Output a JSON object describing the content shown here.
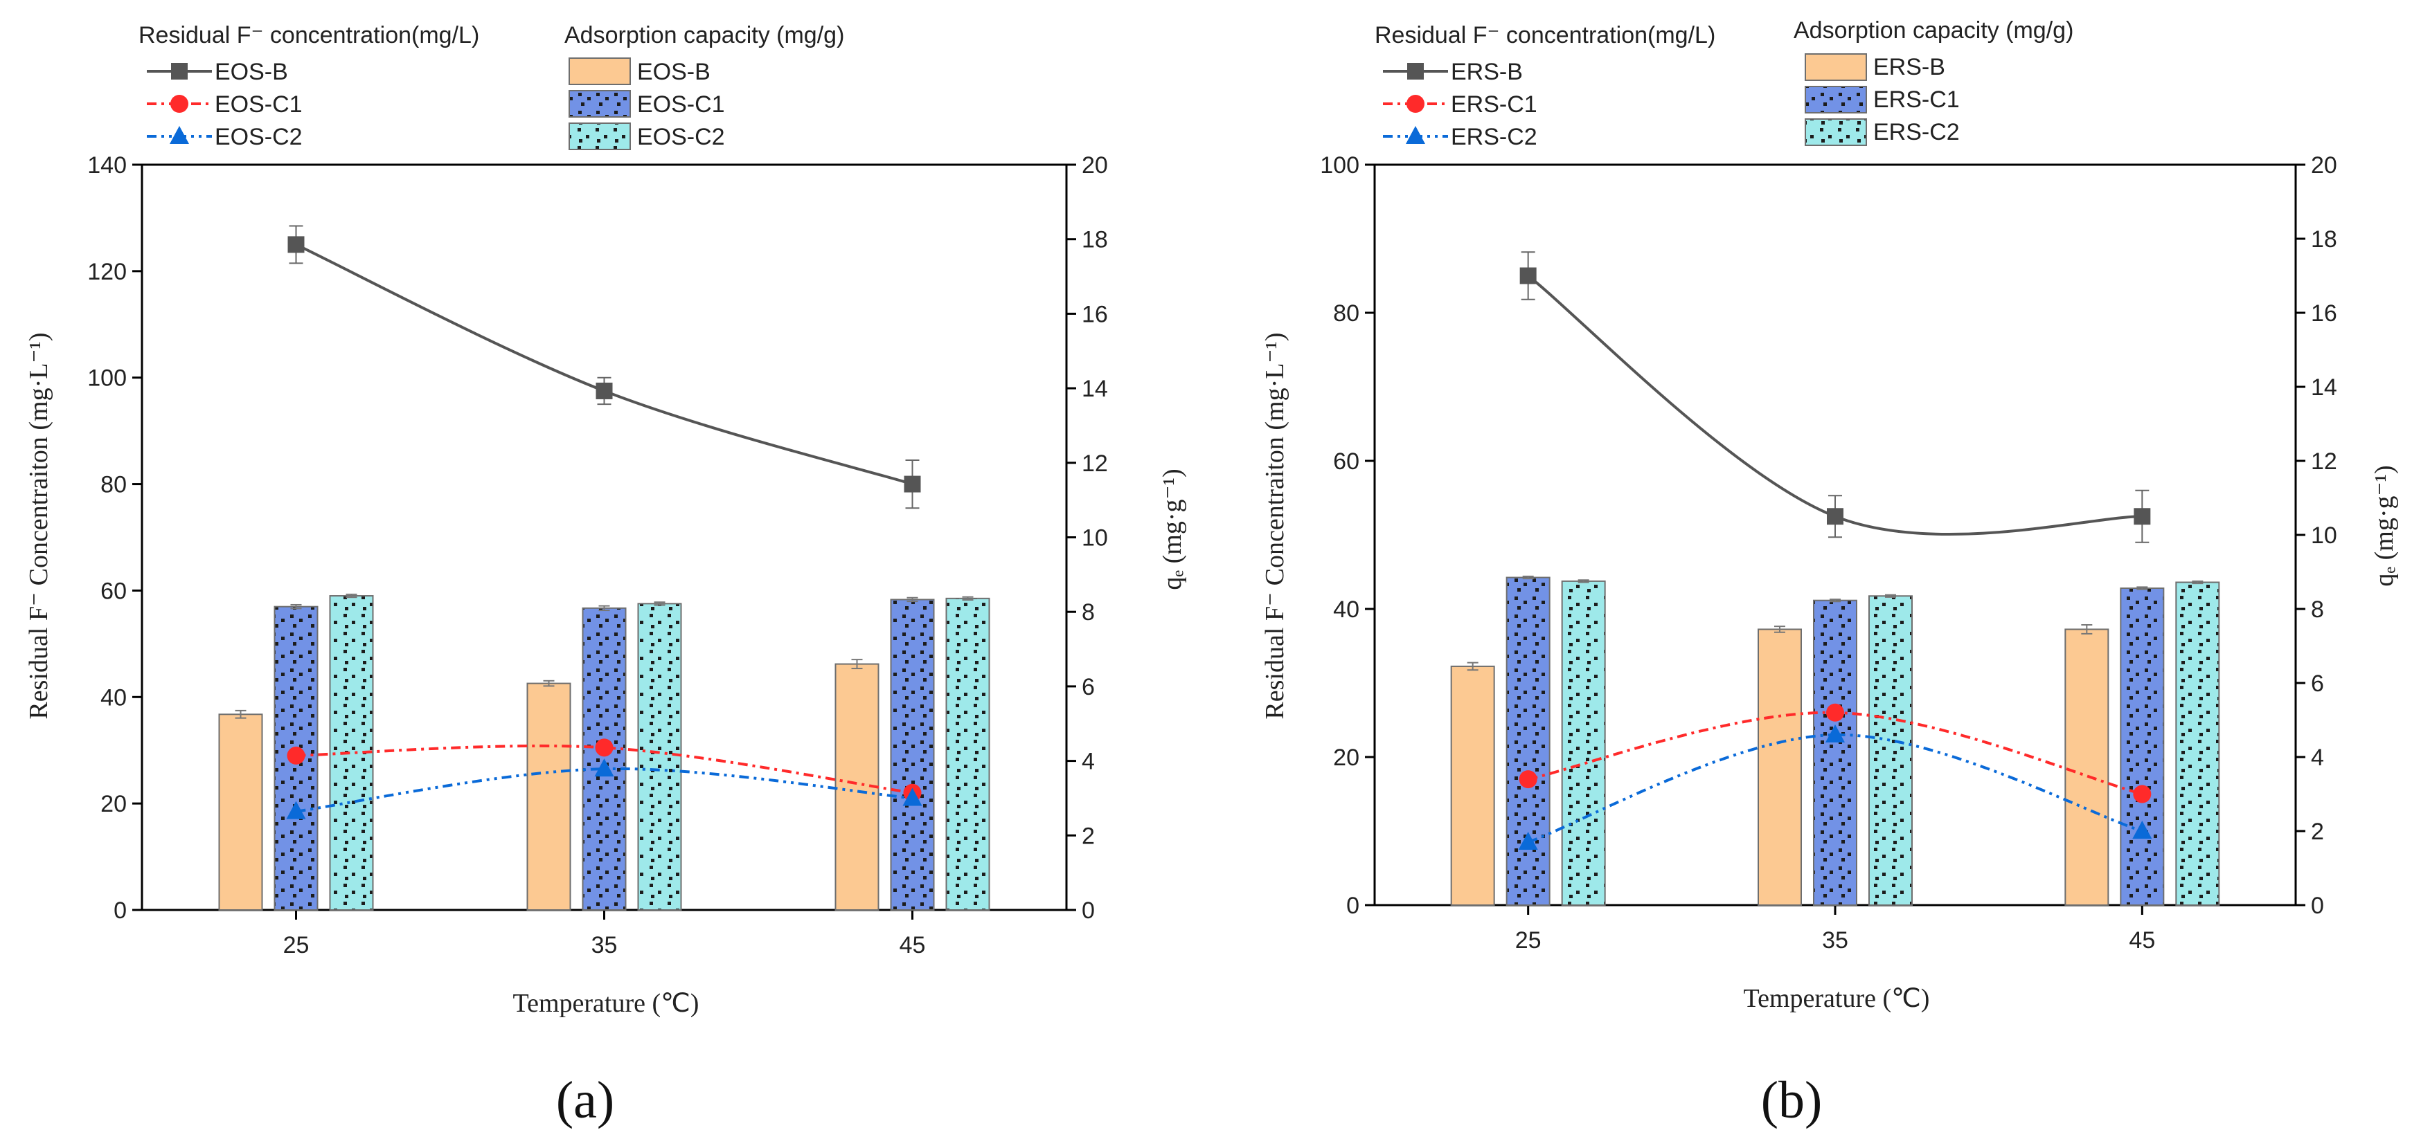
{
  "chart_data": [
    {
      "type": "bar+line",
      "panel_label": "(a)",
      "xlabel": "Temperature (℃)",
      "categories": [
        "25",
        "35",
        "45"
      ],
      "ylabel_left": "Residual F⁻ Concentraiton (mg·L⁻¹)",
      "ylabel_right": "qₑ (mg·g⁻¹)",
      "ylim_left": [
        0,
        140
      ],
      "yticks_left": [
        0,
        20,
        40,
        60,
        80,
        100,
        120,
        140
      ],
      "ylim_right": [
        0,
        20
      ],
      "yticks_right": [
        0,
        2,
        4,
        6,
        8,
        10,
        12,
        14,
        16,
        18,
        20
      ],
      "legend_line_title": "Residual F⁻ concentration(mg/L)",
      "legend_bar_title": "Adsorption capacity (mg/g)",
      "line_series": [
        {
          "name": "EOS-B",
          "values": [
            125,
            97.5,
            80
          ],
          "errors": [
            3.5,
            2.5,
            4.5
          ],
          "color": "#555555",
          "marker": "square"
        },
        {
          "name": "EOS-C1",
          "values": [
            29,
            30.5,
            22
          ],
          "errors": [
            0,
            0,
            0
          ],
          "color": "#ff2a2a",
          "marker": "circle"
        },
        {
          "name": "EOS-C2",
          "values": [
            18.5,
            26.5,
            21
          ],
          "errors": [
            0,
            0,
            0
          ],
          "color": "#0a6ad8",
          "marker": "triangle"
        }
      ],
      "bar_series": [
        {
          "name": "EOS-B",
          "values": [
            5.25,
            6.08,
            6.6
          ],
          "errors": [
            0.1,
            0.07,
            0.12
          ],
          "color": "#fcc992",
          "pattern": "none"
        },
        {
          "name": "EOS-C1",
          "values": [
            8.14,
            8.1,
            8.33
          ],
          "errors": [
            0.05,
            0.06,
            0.05
          ],
          "color": "#7292e6",
          "pattern": "dots"
        },
        {
          "name": "EOS-C2",
          "values": [
            8.43,
            8.22,
            8.36
          ],
          "errors": [
            0.04,
            0.04,
            0.04
          ],
          "color": "#9ee9ea",
          "pattern": "dots"
        }
      ]
    },
    {
      "type": "bar+line",
      "panel_label": "(b)",
      "xlabel": "Temperature (℃)",
      "categories": [
        "25",
        "35",
        "45"
      ],
      "ylabel_left": "Residual F⁻ Concentraiton (mg·L⁻¹)",
      "ylabel_right": "qₑ (mg·g⁻¹)",
      "ylim_left": [
        0,
        100
      ],
      "yticks_left": [
        0,
        20,
        40,
        60,
        80,
        100
      ],
      "ylim_right": [
        0,
        20
      ],
      "yticks_right": [
        0,
        2,
        4,
        6,
        8,
        10,
        12,
        14,
        16,
        18,
        20
      ],
      "legend_line_title": "Residual F⁻ concentration(mg/L)",
      "legend_bar_title": "Adsorption capacity (mg/g)",
      "line_series": [
        {
          "name": "ERS-B",
          "values": [
            85,
            52.5,
            52.5
          ],
          "errors": [
            3.2,
            2.8,
            3.5
          ],
          "color": "#555555",
          "marker": "square"
        },
        {
          "name": "ERS-C1",
          "values": [
            17,
            26,
            15
          ],
          "errors": [
            0,
            0,
            0
          ],
          "color": "#ff2a2a",
          "marker": "circle"
        },
        {
          "name": "ERS-C2",
          "values": [
            8.5,
            23,
            10
          ],
          "errors": [
            0,
            0,
            0
          ],
          "color": "#0a6ad8",
          "marker": "triangle"
        }
      ],
      "bar_series": [
        {
          "name": "ERS-B",
          "values": [
            6.45,
            7.45,
            7.45
          ],
          "errors": [
            0.1,
            0.08,
            0.12
          ],
          "color": "#fcc992",
          "pattern": "none"
        },
        {
          "name": "ERS-C1",
          "values": [
            8.85,
            8.23,
            8.56
          ],
          "errors": [
            0.03,
            0.03,
            0.03
          ],
          "color": "#7292e6",
          "pattern": "dots"
        },
        {
          "name": "ERS-C2",
          "values": [
            8.75,
            8.35,
            8.72
          ],
          "errors": [
            0.03,
            0.03,
            0.03
          ],
          "color": "#9ee9ea",
          "pattern": "dots"
        }
      ]
    }
  ]
}
